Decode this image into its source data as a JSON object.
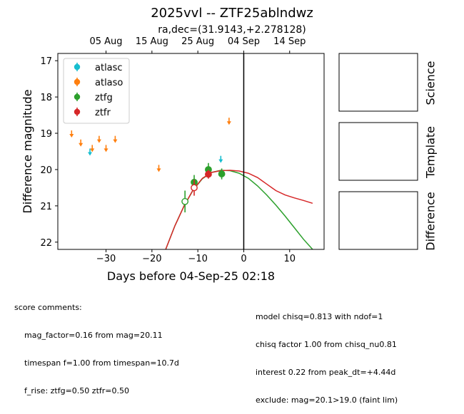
{
  "title": "2025vvl -- ZTF25ablndwz",
  "subtitle": "ra,dec=(31.9143,+2.278128)",
  "panels": {
    "science": "Science",
    "template": "Template",
    "difference": "Difference"
  },
  "comments_left": {
    "heading": "score comments:",
    "lines": [
      "mag_factor=0.16 from mag=20.11",
      "timespan f=1.00 from timespan=10.7d",
      "f_rise: ztfg=0.50 ztfr=0.50"
    ]
  },
  "comments_right": {
    "lines": [
      "model chisq=0.813 with ndof=1",
      "chisq factor 1.00 from chisq_nu0.81",
      "interest 0.22 from peak_dt=+4.44d",
      "exclude: mag=20.1>19.0 (faint lim)"
    ]
  },
  "chart_data": {
    "type": "scatter",
    "xlabel": "Days before 04-Sep-25 02:18",
    "ylabel": "Difference magnitude",
    "xlim": [
      -40.5,
      17.5
    ],
    "ylim": [
      22.2,
      16.8
    ],
    "y_inverted": true,
    "x_ticks": [
      -30,
      -20,
      -10,
      0,
      10
    ],
    "y_ticks": [
      17,
      18,
      19,
      20,
      21,
      22
    ],
    "top_axis_ticks": [
      {
        "label": "05 Aug",
        "x": -30
      },
      {
        "label": "15 Aug",
        "x": -20
      },
      {
        "label": "25 Aug",
        "x": -10
      },
      {
        "label": "04 Sep",
        "x": 0
      },
      {
        "label": "14 Sep",
        "x": 10
      }
    ],
    "reference_line_x": 0,
    "legend_position": "upper-left",
    "colors": {
      "atlasc": "#17becf",
      "atlaso": "#ff7f0e",
      "ztfg": "#2ca02c",
      "ztfr": "#d62728"
    },
    "series": [
      {
        "name": "atlasc",
        "upper_limits": [
          {
            "x": -33.5,
            "y": 19.5
          },
          {
            "x": -5.0,
            "y": 19.7
          }
        ],
        "detections": []
      },
      {
        "name": "atlaso",
        "upper_limits": [
          {
            "x": -37.5,
            "y": 19.0
          },
          {
            "x": -35.5,
            "y": 19.25
          },
          {
            "x": -33.0,
            "y": 19.4
          },
          {
            "x": -31.5,
            "y": 19.15
          },
          {
            "x": -30.0,
            "y": 19.4
          },
          {
            "x": -28.0,
            "y": 19.15
          },
          {
            "x": -18.5,
            "y": 19.95
          },
          {
            "x": -3.2,
            "y": 18.65
          }
        ],
        "detections": []
      },
      {
        "name": "ztfg",
        "upper_limits": [],
        "detections": [
          {
            "x": -12.8,
            "y": 20.88,
            "err": 0.3,
            "open": true
          },
          {
            "x": -10.8,
            "y": 20.35,
            "err": 0.2,
            "open": false
          },
          {
            "x": -7.7,
            "y": 20.0,
            "err": 0.18,
            "open": false
          },
          {
            "x": -4.8,
            "y": 20.12,
            "err": 0.15,
            "open": false
          }
        ]
      },
      {
        "name": "ztfr",
        "upper_limits": [],
        "detections": [
          {
            "x": -10.8,
            "y": 20.5,
            "err": 0.22,
            "open": true
          },
          {
            "x": -7.7,
            "y": 20.13,
            "err": 0.12,
            "open": false
          }
        ]
      }
    ],
    "model_curves": [
      {
        "name": "ztfg",
        "x": [
          -17.0,
          -15.0,
          -13.0,
          -11.0,
          -9.0,
          -7.0,
          -5.0,
          -3.0,
          -1.0,
          1.0,
          3.0,
          5.0,
          7.0,
          9.0,
          11.0,
          13.0,
          15.0
        ],
        "y": [
          22.2,
          21.55,
          21.0,
          20.56,
          20.25,
          20.08,
          20.02,
          20.03,
          20.1,
          20.24,
          20.45,
          20.7,
          20.98,
          21.28,
          21.6,
          21.92,
          22.2
        ]
      },
      {
        "name": "ztfr",
        "x": [
          -17.0,
          -15.0,
          -13.0,
          -11.0,
          -9.0,
          -7.0,
          -5.0,
          -3.0,
          -1.0,
          1.0,
          3.0,
          5.0,
          7.0,
          9.0,
          11.0,
          13.0,
          15.0
        ],
        "y": [
          22.2,
          21.55,
          21.0,
          20.55,
          20.24,
          20.08,
          20.03,
          20.02,
          20.04,
          20.1,
          20.22,
          20.4,
          20.58,
          20.7,
          20.78,
          20.85,
          20.93
        ]
      }
    ]
  }
}
